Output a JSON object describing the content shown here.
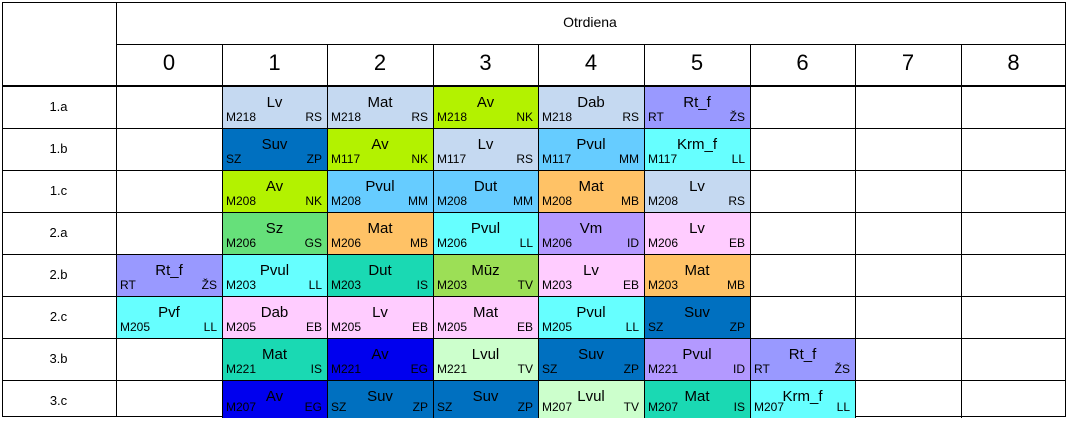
{
  "header": {
    "title": "Otrdiena",
    "periods": [
      "0",
      "1",
      "2",
      "3",
      "4",
      "5",
      "6",
      "7",
      "8"
    ]
  },
  "classes": [
    "1.a",
    "1.b",
    "1.c",
    "2.a",
    "2.b",
    "2.c",
    "3.b",
    "3.c"
  ],
  "lessons": [
    {
      "row": 0,
      "col": 1,
      "subject": "Lv",
      "room": "M218",
      "teacher": "RS",
      "color": "#c5d9f1"
    },
    {
      "row": 0,
      "col": 2,
      "subject": "Mat",
      "room": "M218",
      "teacher": "RS",
      "color": "#c5d9f1"
    },
    {
      "row": 0,
      "col": 3,
      "subject": "Av",
      "room": "M218",
      "teacher": "NK",
      "color": "#b3f200"
    },
    {
      "row": 0,
      "col": 4,
      "subject": "Dab",
      "room": "M218",
      "teacher": "RS",
      "color": "#c5d9f1"
    },
    {
      "row": 0,
      "col": 5,
      "subject": "Rt_f",
      "room": "RT",
      "teacher": "ŽS",
      "color": "#9999ff"
    },
    {
      "row": 1,
      "col": 1,
      "subject": "Suv",
      "room": "SZ",
      "teacher": "ZP",
      "color": "#0070c0"
    },
    {
      "row": 1,
      "col": 2,
      "subject": "Av",
      "room": "M117",
      "teacher": "NK",
      "color": "#b3f200"
    },
    {
      "row": 1,
      "col": 3,
      "subject": "Lv",
      "room": "M117",
      "teacher": "RS",
      "color": "#c5d9f1"
    },
    {
      "row": 1,
      "col": 4,
      "subject": "Pvul",
      "room": "M117",
      "teacher": "MM",
      "color": "#66ccff"
    },
    {
      "row": 1,
      "col": 5,
      "subject": "Krm_f",
      "room": "M117",
      "teacher": "LL",
      "color": "#66ffff"
    },
    {
      "row": 2,
      "col": 1,
      "subject": "Av",
      "room": "M208",
      "teacher": "NK",
      "color": "#b3f200"
    },
    {
      "row": 2,
      "col": 2,
      "subject": "Pvul",
      "room": "M208",
      "teacher": "MM",
      "color": "#66ccff"
    },
    {
      "row": 2,
      "col": 3,
      "subject": "Dut",
      "room": "M208",
      "teacher": "MM",
      "color": "#66ccff"
    },
    {
      "row": 2,
      "col": 4,
      "subject": "Mat",
      "room": "M208",
      "teacher": "MB",
      "color": "#ffc266"
    },
    {
      "row": 2,
      "col": 5,
      "subject": "Lv",
      "room": "M208",
      "teacher": "RS",
      "color": "#c5d9f1"
    },
    {
      "row": 3,
      "col": 1,
      "subject": "Sz",
      "room": "M206",
      "teacher": "GS",
      "color": "#66e07a"
    },
    {
      "row": 3,
      "col": 2,
      "subject": "Mat",
      "room": "M206",
      "teacher": "MB",
      "color": "#ffc266"
    },
    {
      "row": 3,
      "col": 3,
      "subject": "Pvul",
      "room": "M206",
      "teacher": "LL",
      "color": "#66ffff"
    },
    {
      "row": 3,
      "col": 4,
      "subject": "Vm",
      "room": "M206",
      "teacher": "ID",
      "color": "#b399ff"
    },
    {
      "row": 3,
      "col": 5,
      "subject": "Lv",
      "room": "M206",
      "teacher": "EB",
      "color": "#ffccff"
    },
    {
      "row": 4,
      "col": 0,
      "subject": "Rt_f",
      "room": "RT",
      "teacher": "ŽS",
      "color": "#9999ff"
    },
    {
      "row": 4,
      "col": 1,
      "subject": "Pvul",
      "room": "M203",
      "teacher": "LL",
      "color": "#66ffff"
    },
    {
      "row": 4,
      "col": 2,
      "subject": "Dut",
      "room": "M203",
      "teacher": "IS",
      "color": "#1ad9b3"
    },
    {
      "row": 4,
      "col": 3,
      "subject": "Mūz",
      "room": "M203",
      "teacher": "TV",
      "color": "#9cdf56"
    },
    {
      "row": 4,
      "col": 4,
      "subject": "Lv",
      "room": "M203",
      "teacher": "EB",
      "color": "#ffccff"
    },
    {
      "row": 4,
      "col": 5,
      "subject": "Mat",
      "room": "M203",
      "teacher": "MB",
      "color": "#ffc266"
    },
    {
      "row": 5,
      "col": 0,
      "subject": "Pvf",
      "room": "M205",
      "teacher": "LL",
      "color": "#66ffff"
    },
    {
      "row": 5,
      "col": 1,
      "subject": "Dab",
      "room": "M205",
      "teacher": "EB",
      "color": "#ffccff"
    },
    {
      "row": 5,
      "col": 2,
      "subject": "Lv",
      "room": "M205",
      "teacher": "EB",
      "color": "#ffccff"
    },
    {
      "row": 5,
      "col": 3,
      "subject": "Mat",
      "room": "M205",
      "teacher": "EB",
      "color": "#ffccff"
    },
    {
      "row": 5,
      "col": 4,
      "subject": "Pvul",
      "room": "M205",
      "teacher": "LL",
      "color": "#66ffff"
    },
    {
      "row": 5,
      "col": 5,
      "subject": "Suv",
      "room": "SZ",
      "teacher": "ZP",
      "color": "#0070c0"
    },
    {
      "row": 6,
      "col": 1,
      "subject": "Mat",
      "room": "M221",
      "teacher": "IS",
      "color": "#1ad9b3"
    },
    {
      "row": 6,
      "col": 2,
      "subject": "Av",
      "room": "M221",
      "teacher": "EG",
      "color": "#0000ee"
    },
    {
      "row": 6,
      "col": 3,
      "subject": "Lvul",
      "room": "M221",
      "teacher": "TV",
      "color": "#ccffcc"
    },
    {
      "row": 6,
      "col": 4,
      "subject": "Suv",
      "room": "SZ",
      "teacher": "ZP",
      "color": "#0070c0"
    },
    {
      "row": 6,
      "col": 5,
      "subject": "Pvul",
      "room": "M221",
      "teacher": "ID",
      "color": "#b399ff"
    },
    {
      "row": 6,
      "col": 6,
      "subject": "Rt_f",
      "room": "RT",
      "teacher": "ŽS",
      "color": "#9999ff"
    },
    {
      "row": 7,
      "col": 1,
      "subject": "Av",
      "room": "M207",
      "teacher": "EG",
      "color": "#0000ee"
    },
    {
      "row": 7,
      "col": 2,
      "subject": "Suv",
      "room": "SZ",
      "teacher": "ZP",
      "color": "#0070c0"
    },
    {
      "row": 7,
      "col": 3,
      "subject": "Suv",
      "room": "SZ",
      "teacher": "ZP",
      "color": "#0070c0"
    },
    {
      "row": 7,
      "col": 4,
      "subject": "Lvul",
      "room": "M207",
      "teacher": "TV",
      "color": "#ccffcc"
    },
    {
      "row": 7,
      "col": 5,
      "subject": "Mat",
      "room": "M207",
      "teacher": "IS",
      "color": "#1ad9b3"
    },
    {
      "row": 7,
      "col": 6,
      "subject": "Krm_f",
      "room": "M207",
      "teacher": "LL",
      "color": "#66ffff"
    }
  ]
}
